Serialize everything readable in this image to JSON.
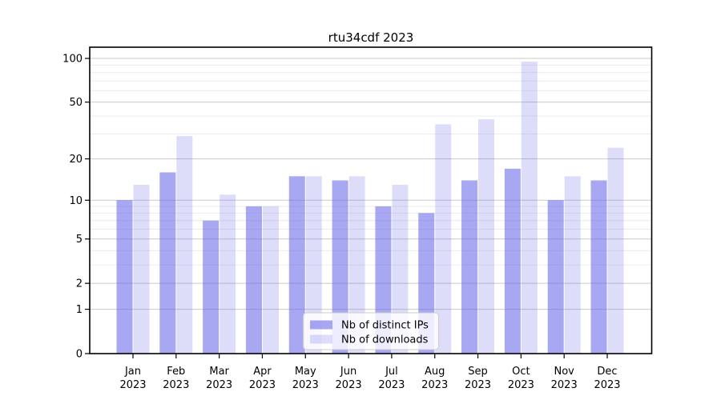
{
  "chart_data": {
    "type": "bar",
    "title": "rtu34cdf 2023",
    "categories": [
      "Jan",
      "Feb",
      "Mar",
      "Apr",
      "May",
      "Jun",
      "Jul",
      "Aug",
      "Sep",
      "Oct",
      "Nov",
      "Dec"
    ],
    "category_year": "2023",
    "series": [
      {
        "name": "Nb of distinct IPs",
        "values": [
          10,
          16,
          7,
          9,
          15,
          14,
          9,
          8,
          14,
          17,
          10,
          14
        ],
        "color": "#6666e8",
        "opacity": 0.575
      },
      {
        "name": "Nb of downloads",
        "values": [
          13,
          29,
          11,
          9,
          15,
          15,
          13,
          35,
          38,
          95,
          15,
          24
        ],
        "color": "#6666e8",
        "opacity": 0.22
      }
    ],
    "yscale": "log1p",
    "ylim": [
      0,
      118
    ],
    "yticks": [
      0,
      1,
      2,
      5,
      10,
      20,
      50,
      100
    ],
    "yticks_minor": [
      3,
      4,
      6,
      7,
      8,
      9,
      30,
      40,
      60,
      70,
      80,
      90
    ],
    "grid": true,
    "legend_position": "lower center",
    "colors": {
      "grid_major": "#c9c9c9",
      "grid_minor": "#e9e9e9",
      "spine": "#000000",
      "legend_border": "#cccccc",
      "legend_bg": "#ffffff"
    }
  }
}
